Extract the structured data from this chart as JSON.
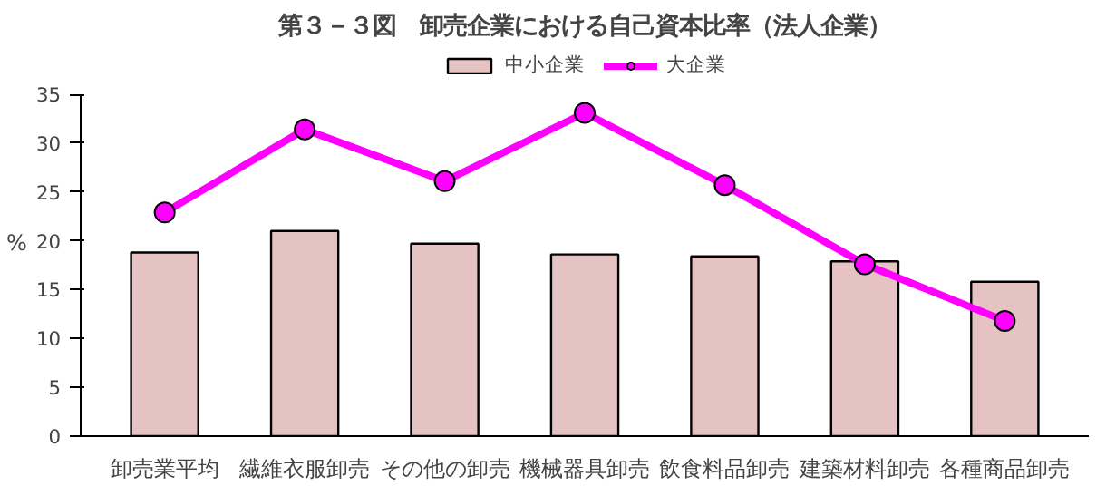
{
  "chart_data": {
    "type": "bar",
    "title": "第３－３図　卸売企業における自己資本比率（法人企業）",
    "ylabel": "%",
    "categories": [
      "卸売業平均",
      "繊維衣服卸売",
      "その他の卸売",
      "機械器具卸売",
      "飲食料品卸売",
      "建築材料卸売",
      "各種商品卸売"
    ],
    "series": [
      {
        "name": "中小企業",
        "color": "#e6c3c3",
        "values": [
          18.8,
          21.0,
          19.7,
          18.6,
          18.4,
          17.9,
          15.8
        ]
      },
      {
        "name": "大企業",
        "type": "line",
        "color": "#ff00ff",
        "values": [
          22.9,
          31.4,
          26.1,
          33.1,
          25.7,
          17.6,
          11.8
        ]
      }
    ],
    "ylim": [
      0,
      35
    ],
    "yticks": [
      0,
      5,
      10,
      15,
      20,
      25,
      30,
      35
    ],
    "grid": false,
    "legend": "top",
    "marker": "circle"
  }
}
